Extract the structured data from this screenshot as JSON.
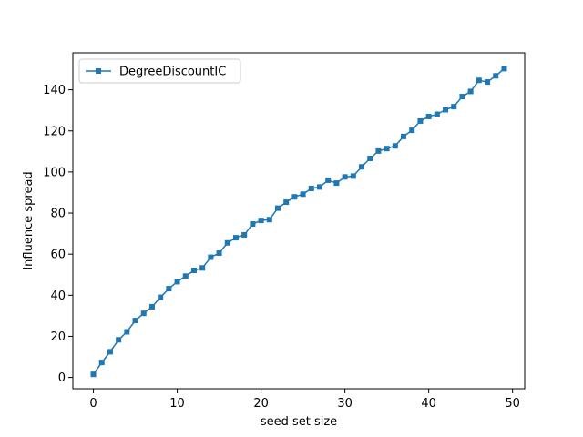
{
  "chart_data": {
    "type": "line",
    "xlabel": "seed set size",
    "ylabel": "Influence spread",
    "xlim": [
      -2.45,
      51.45
    ],
    "ylim": [
      -5.5,
      158.0
    ],
    "xticks": [
      0,
      10,
      20,
      30,
      40,
      50
    ],
    "yticks": [
      0,
      20,
      40,
      60,
      80,
      100,
      120,
      140
    ],
    "grid": false,
    "legend_position": "top-left",
    "series": [
      {
        "name": "DegreeDiscountIC",
        "color": "#1f77b4",
        "marker": "square",
        "x": [
          0,
          1,
          2,
          3,
          4,
          5,
          6,
          7,
          8,
          9,
          10,
          11,
          12,
          13,
          14,
          15,
          16,
          17,
          18,
          19,
          20,
          21,
          22,
          23,
          24,
          25,
          26,
          27,
          28,
          29,
          30,
          31,
          32,
          33,
          34,
          35,
          36,
          37,
          38,
          39,
          40,
          41,
          42,
          43,
          44,
          45,
          46,
          47,
          48,
          49
        ],
        "y": [
          1.5,
          7.3,
          12.5,
          18.3,
          22.2,
          27.7,
          31.2,
          34.4,
          39.0,
          43.2,
          46.6,
          49.3,
          52.1,
          53.3,
          58.5,
          60.5,
          65.5,
          68.0,
          69.4,
          74.7,
          76.4,
          76.8,
          82.4,
          85.3,
          87.9,
          89.2,
          92.0,
          92.7,
          96.0,
          94.6,
          97.6,
          98.0,
          102.5,
          106.6,
          110.2,
          111.4,
          112.7,
          117.3,
          120.3,
          124.8,
          127.0,
          128.1,
          130.3,
          131.8,
          136.7,
          139.2,
          144.6,
          143.8,
          146.8,
          150.3
        ]
      }
    ]
  }
}
